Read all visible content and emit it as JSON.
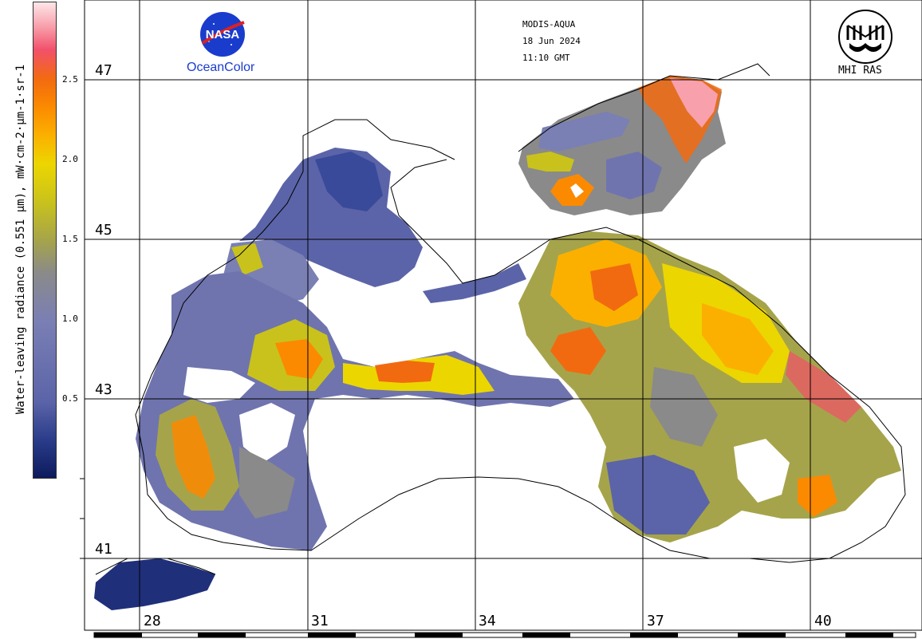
{
  "header": {
    "sensor": "MODIS-AQUA",
    "date": "18 Jun 2024",
    "time": "11:10 GMT",
    "left_logo_text": "NASA",
    "left_logo_caption": "OceanColor",
    "right_logo_caption": "MHI RAS"
  },
  "colorbar": {
    "label": "Water-leaving radiance (0.551 µm), mW·cm-2·µm-1·sr-1",
    "ticks": [
      "2.5",
      "2.0",
      "1.5",
      "1.0",
      "0.5"
    ],
    "colors": [
      "#0d1a5c",
      "#5b64a8",
      "#8a8a8a",
      "#c9c21c",
      "#fbb000",
      "#f26a10",
      "#f8a0ac"
    ]
  },
  "map": {
    "latitudes": [
      "47",
      "45",
      "43",
      "41"
    ],
    "longitudes": [
      "28",
      "31",
      "34",
      "37",
      "40"
    ]
  }
}
